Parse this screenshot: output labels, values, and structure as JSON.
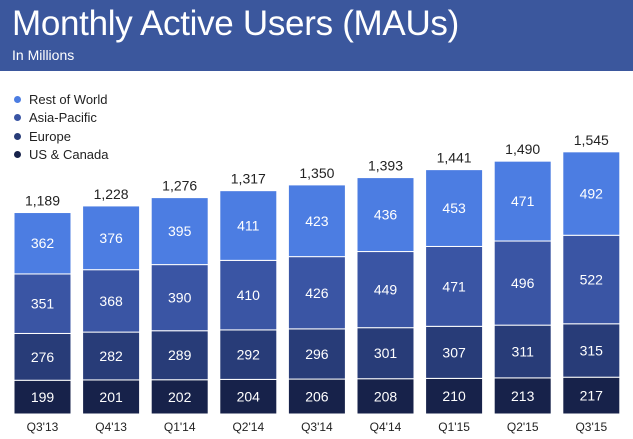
{
  "header": {
    "title": "Monthly Active Users (MAUs)",
    "subtitle": "In Millions"
  },
  "colors": {
    "header_bg": "#3b579d",
    "us_canada": "#17224a",
    "europe": "#283c78",
    "asia_pacific": "#3a55a4",
    "rest_of_world": "#4c7de2"
  },
  "chart_data": {
    "type": "bar",
    "stacked": true,
    "title": "Monthly Active Users (MAUs)",
    "subtitle": "In Millions",
    "categories": [
      "Q3'13",
      "Q4'13",
      "Q1'14",
      "Q2'14",
      "Q3'14",
      "Q4'14",
      "Q1'15",
      "Q2'15",
      "Q3'15"
    ],
    "series": [
      {
        "name": "US & Canada",
        "values": [
          199,
          201,
          202,
          204,
          206,
          208,
          210,
          213,
          217
        ]
      },
      {
        "name": "Europe",
        "values": [
          276,
          282,
          289,
          292,
          296,
          301,
          307,
          311,
          315
        ]
      },
      {
        "name": "Asia-Pacific",
        "values": [
          351,
          368,
          390,
          410,
          426,
          449,
          471,
          496,
          522
        ]
      },
      {
        "name": "Rest of World",
        "values": [
          362,
          376,
          395,
          411,
          423,
          436,
          453,
          471,
          492
        ]
      }
    ],
    "totals": [
      "1,189",
      "1,228",
      "1,276",
      "1,317",
      "1,350",
      "1,393",
      "1,441",
      "1,490",
      "1,545"
    ],
    "legend": [
      "Rest of World",
      "Asia-Pacific",
      "Europe",
      "US & Canada"
    ],
    "legend_position": "top-left",
    "ylim": [
      0,
      1545
    ],
    "grid": false
  }
}
